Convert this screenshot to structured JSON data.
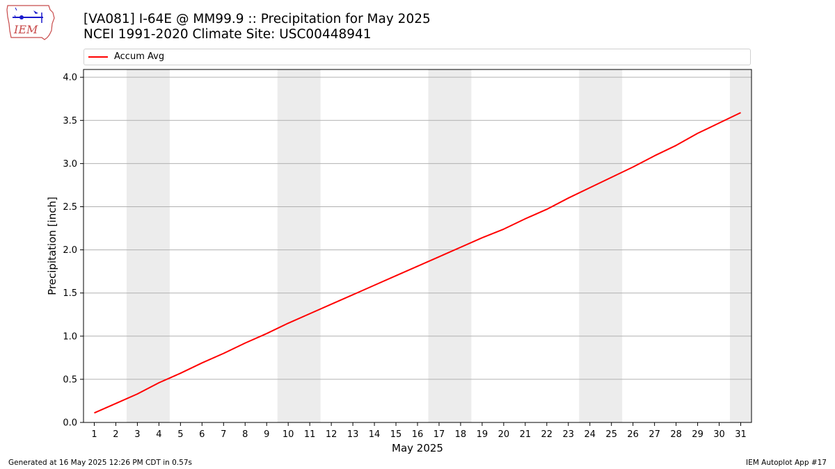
{
  "header": {
    "title_line1": "[VA081] I-64E @ MM99.9 :: Precipitation for May 2025",
    "title_line2": "NCEI 1991-2020 Climate Site: USC00448941",
    "logo_text": "IEM"
  },
  "legend": {
    "entries": [
      {
        "label": "Accum Avg",
        "color": "#ff0000"
      }
    ]
  },
  "footer": {
    "generated": "Generated at 16 May 2025 12:26 PM CDT in 0.57s",
    "app": "IEM Autoplot App #17"
  },
  "chart_data": {
    "type": "line",
    "title": "[VA081] I-64E @ MM99.9 :: Precipitation for May 2025",
    "subtitle": "NCEI 1991-2020 Climate Site: USC00448941",
    "xlabel": "May 2025",
    "ylabel": "Precipitation [inch]",
    "xlim": [
      0.5,
      31.5
    ],
    "ylim": [
      0,
      4.09
    ],
    "x_ticks": [
      1,
      2,
      3,
      4,
      5,
      6,
      7,
      8,
      9,
      10,
      11,
      12,
      13,
      14,
      15,
      16,
      17,
      18,
      19,
      20,
      21,
      22,
      23,
      24,
      25,
      26,
      27,
      28,
      29,
      30,
      31
    ],
    "y_ticks": [
      0.0,
      0.5,
      1.0,
      1.5,
      2.0,
      2.5,
      3.0,
      3.5,
      4.0
    ],
    "y_tick_labels": [
      "0.0",
      "0.5",
      "1.0",
      "1.5",
      "2.0",
      "2.5",
      "3.0",
      "3.5",
      "4.0"
    ],
    "grid": "horizontal",
    "legend_position": "top",
    "weekend_shading": [
      [
        2.5,
        4.5
      ],
      [
        9.5,
        11.5
      ],
      [
        16.5,
        18.5
      ],
      [
        23.5,
        25.5
      ],
      [
        30.5,
        31.5
      ]
    ],
    "shade_color": "#ececec",
    "series": [
      {
        "name": "Accum Avg",
        "color": "#ff0000",
        "x": [
          1,
          2,
          3,
          4,
          5,
          6,
          7,
          8,
          9,
          10,
          11,
          12,
          13,
          14,
          15,
          16,
          17,
          18,
          19,
          20,
          21,
          22,
          23,
          24,
          25,
          26,
          27,
          28,
          29,
          30,
          31
        ],
        "values": [
          0.11,
          0.22,
          0.33,
          0.46,
          0.57,
          0.69,
          0.8,
          0.92,
          1.03,
          1.15,
          1.26,
          1.37,
          1.48,
          1.59,
          1.7,
          1.81,
          1.92,
          2.03,
          2.14,
          2.24,
          2.36,
          2.47,
          2.6,
          2.72,
          2.84,
          2.96,
          3.09,
          3.21,
          3.35,
          3.47,
          3.59
        ]
      }
    ]
  }
}
